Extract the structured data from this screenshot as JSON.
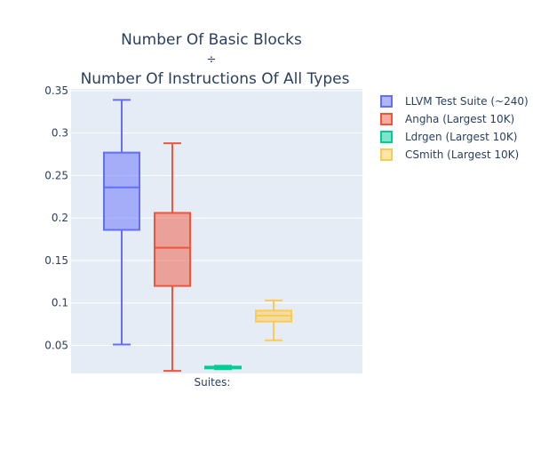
{
  "chart_data": {
    "type": "box",
    "title_lines": [
      "Number Of Basic Blocks",
      "÷",
      "Number Of Instructions Of All Types"
    ],
    "xlabel": "Suites:",
    "ylabel": "",
    "ylim": [
      0.017,
      0.352
    ],
    "yticks": [
      0.05,
      0.1,
      0.15,
      0.2,
      0.25,
      0.3,
      0.35
    ],
    "ytick_labels": [
      "0.05",
      "0.1",
      "0.15",
      "0.2",
      "0.25",
      "0.3",
      "0.35"
    ],
    "grid": true,
    "legend_position": "top-right",
    "series": [
      {
        "name": "LLVM Test Suite (~240)",
        "color": "#636efa",
        "min": 0.051,
        "q1": 0.186,
        "median": 0.236,
        "q3": 0.277,
        "max": 0.339
      },
      {
        "name": "Angha (Largest 10K)",
        "color": "#ef553b",
        "min": 0.02,
        "q1": 0.12,
        "median": 0.165,
        "q3": 0.206,
        "max": 0.288
      },
      {
        "name": "Ldrgen (Largest 10K)",
        "color": "#00cc96",
        "min": 0.022,
        "q1": 0.023,
        "median": 0.024,
        "q3": 0.025,
        "max": 0.026
      },
      {
        "name": "CSmith (Largest 10K)",
        "color": "#fecb52",
        "min": 0.056,
        "q1": 0.078,
        "median": 0.085,
        "q3": 0.091,
        "max": 0.103
      }
    ]
  }
}
